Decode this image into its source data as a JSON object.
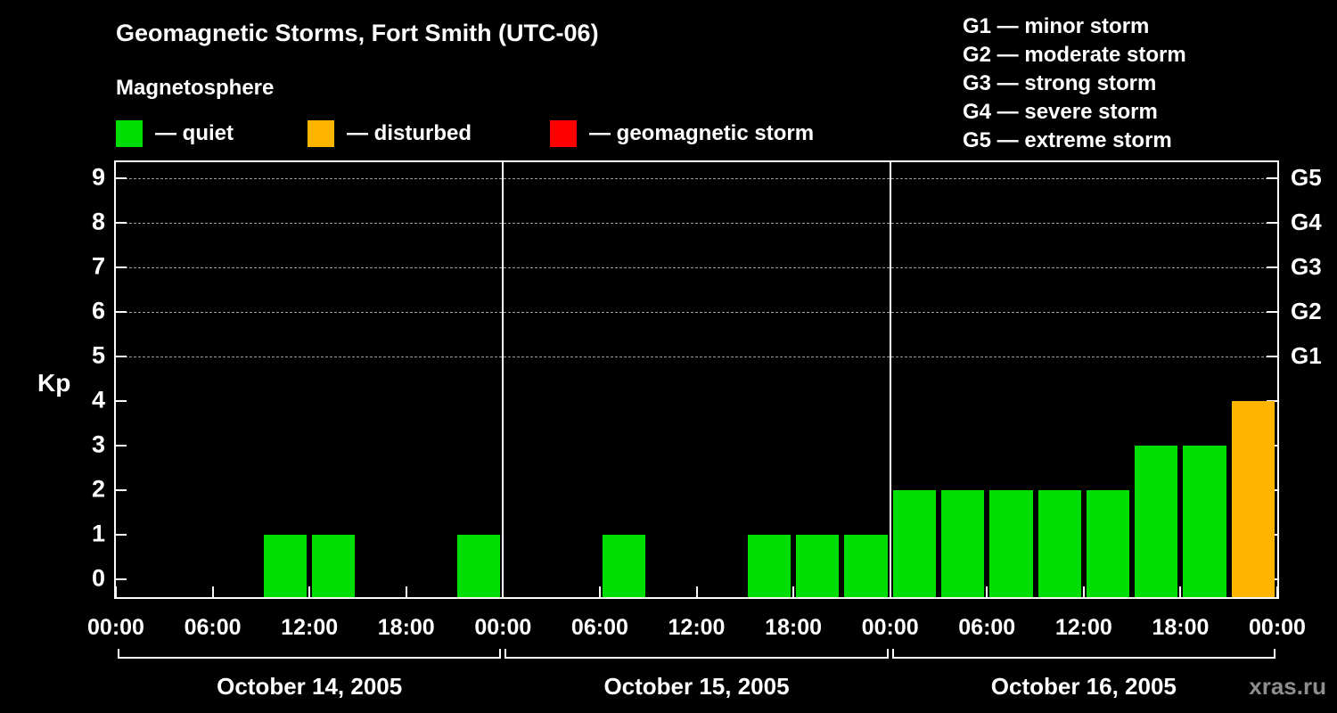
{
  "header": {
    "title": "Geomagnetic Storms, Fort Smith (UTC-06)",
    "subtitle": "Magnetosphere"
  },
  "kp_legend": [
    {
      "label": "— quiet",
      "color": "#00dd00"
    },
    {
      "label": "— disturbed",
      "color": "#ffb400"
    },
    {
      "label": "— geomagnetic storm",
      "color": "#ff0000"
    }
  ],
  "storm_scale_legend": [
    "G1 — minor storm",
    "G2 — moderate storm",
    "G3 — strong storm",
    "G4 — severe storm",
    "G5 — extreme storm"
  ],
  "watermark": "xras.ru",
  "chart_data": {
    "type": "bar",
    "title": "Geomagnetic Storms, Fort Smith (UTC-06)",
    "ylabel": "Kp",
    "ylim": [
      0,
      9
    ],
    "y_ticks": [
      0,
      1,
      2,
      3,
      4,
      5,
      6,
      7,
      8,
      9
    ],
    "grid_levels_kp": [
      5,
      6,
      7,
      8,
      9
    ],
    "right_axis": [
      {
        "label": "G1",
        "kp": 5
      },
      {
        "label": "G2",
        "kp": 6
      },
      {
        "label": "G3",
        "kp": 7
      },
      {
        "label": "G4",
        "kp": 8
      },
      {
        "label": "G5",
        "kp": 9
      }
    ],
    "x_tick_labels": [
      "00:00",
      "06:00",
      "12:00",
      "18:00",
      "00:00",
      "06:00",
      "12:00",
      "18:00",
      "00:00",
      "06:00",
      "12:00",
      "18:00",
      "00:00"
    ],
    "interval_hours": 3,
    "days": [
      {
        "date": "October 14, 2005",
        "kp_values": [
          0,
          0,
          0,
          1,
          1,
          0,
          0,
          1
        ]
      },
      {
        "date": "October 15, 2005",
        "kp_values": [
          0,
          0,
          1,
          0,
          0,
          1,
          1,
          1
        ]
      },
      {
        "date": "October 16, 2005",
        "kp_values": [
          2,
          2,
          2,
          2,
          2,
          3,
          3,
          4
        ]
      }
    ],
    "colors": {
      "quiet": "#00dd00",
      "disturbed": "#ffb400",
      "storm": "#ff0000"
    },
    "color_thresholds": {
      "disturbed_min_kp": 4,
      "storm_min_kp": 5
    }
  }
}
